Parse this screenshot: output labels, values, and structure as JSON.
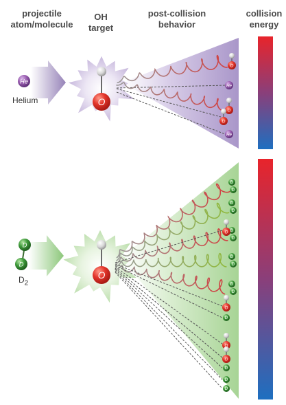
{
  "headers": {
    "projectile": [
      "projectile",
      "atom/molecule"
    ],
    "target": [
      "OH",
      "target"
    ],
    "post_collision": [
      "post-collision",
      "behavior"
    ],
    "energy": [
      "collision",
      "energy"
    ]
  },
  "panels": [
    {
      "projectile_label": "Helium",
      "projectile_symbol": "He",
      "target_atoms": [
        "H",
        "O"
      ],
      "accent": "#a99ac8",
      "outcomes": [
        "spiral",
        "He",
        "spiral",
        "He"
      ]
    },
    {
      "projectile_label": "D2",
      "projectile_symbol": "D",
      "target_atoms": [
        "H",
        "O"
      ],
      "accent": "#9fcf90",
      "outcomes": [
        "spiral",
        "spiral",
        "spiral",
        "spiral",
        "spiral",
        "D",
        "D",
        "D",
        "D"
      ]
    }
  ],
  "energy_scale": {
    "high_color": "#e8242b",
    "low_color": "#1e6fc0"
  },
  "colors": {
    "helium": "#9a5fb0",
    "deuterium": "#3e9a3a",
    "oxygen": "#e3352b",
    "hydrogen": "#d8d8d8",
    "spiral_red": "#d24040",
    "spiral_green": "#8fb83a",
    "spiral_gray": "#9a9a9a"
  }
}
